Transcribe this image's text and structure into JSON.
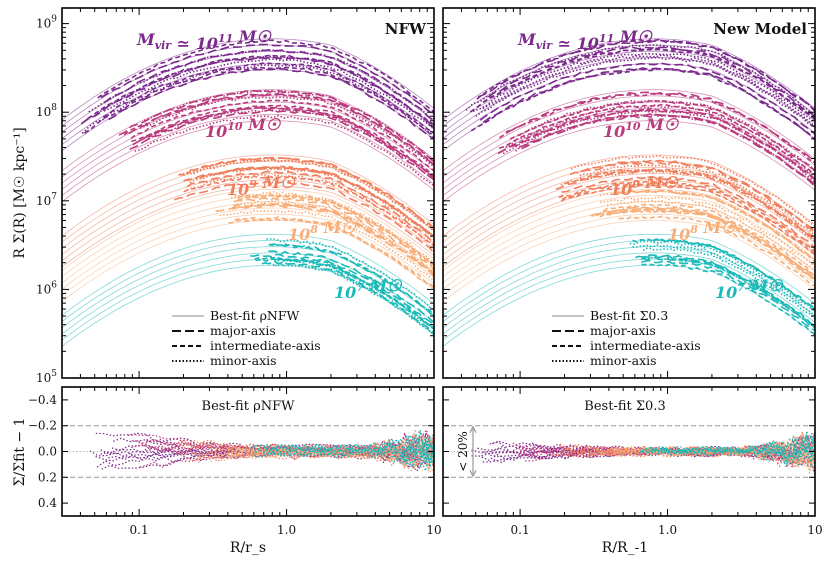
{
  "chart_data": {
    "type": "line",
    "colors": {
      "m11": "#7b2a8c",
      "m10": "#b93a7d",
      "m9": "#ef7f5d",
      "m8": "#f7ae78",
      "m7": "#1bbab8"
    },
    "panels": [
      {
        "title": "NFW",
        "xlabel": "R/r_s",
        "ylabel": "R Σ(R) [M☉ kpc⁻¹]",
        "xscale": "log",
        "yscale": "log",
        "xlim": [
          0.03,
          10
        ],
        "ylim": [
          100000,
          1500000000
        ],
        "xticks": [
          "0.1",
          "1.0",
          "10"
        ],
        "yticks": [
          "10^9",
          "10^8",
          "10^7",
          "10^6",
          "10^5"
        ],
        "legend": {
          "placement": "lower-center",
          "entries": [
            {
              "label": "Best-fit ρNFW",
              "style": "solid"
            },
            {
              "label": "major-axis",
              "style": "long-dash"
            },
            {
              "label": "intermediate-axis",
              "style": "dash"
            },
            {
              "label": "minor-axis",
              "style": "dot"
            }
          ]
        },
        "mass_labels": [
          {
            "key": "m11",
            "text": "M_vir ≃ 10^11 M☉"
          },
          {
            "key": "m10",
            "text": "10^10 M☉"
          },
          {
            "key": "m9",
            "text": "10^9 M☉"
          },
          {
            "key": "m8",
            "text": "10^8 M☉"
          },
          {
            "key": "m7",
            "text": "10^7 M☉"
          }
        ],
        "series": [
          {
            "key": "m11",
            "fit_peak": 450000000,
            "x_range": [
              0.04,
              10
            ]
          },
          {
            "key": "m10",
            "fit_peak": 120000000,
            "x_range": [
              0.07,
              10
            ]
          },
          {
            "key": "m9",
            "fit_peak": 22000000,
            "x_range": [
              0.17,
              10
            ]
          },
          {
            "key": "m8",
            "fit_peak": 9000000,
            "x_range": [
              0.3,
              10
            ]
          },
          {
            "key": "m7",
            "fit_peak": 2800000,
            "x_range": [
              0.55,
              10
            ]
          }
        ]
      },
      {
        "title": "New Model",
        "xlabel": "R/R_-1",
        "xscale": "log",
        "yscale": "log",
        "xlim": [
          0.03,
          10
        ],
        "ylim": [
          100000,
          1500000000
        ],
        "xticks": [
          "0.1",
          "1.0",
          "10"
        ],
        "legend": {
          "placement": "lower-center",
          "entries": [
            {
              "label": "Best-fit Σ0.3",
              "style": "solid"
            },
            {
              "label": "major-axis",
              "style": "long-dash"
            },
            {
              "label": "intermediate-axis",
              "style": "dash"
            },
            {
              "label": "minor-axis",
              "style": "dot"
            }
          ]
        },
        "mass_labels": [
          {
            "key": "m11",
            "text": "M_vir ≃ 10^11 M☉"
          },
          {
            "key": "m10",
            "text": "10^10 M☉"
          },
          {
            "key": "m9",
            "text": "10^9 M☉"
          },
          {
            "key": "m8",
            "text": "10^8 M☉"
          },
          {
            "key": "m7",
            "text": "10^7 M☉"
          }
        ],
        "series": [
          {
            "key": "m11",
            "fit_peak": 450000000,
            "x_range": [
              0.04,
              10
            ]
          },
          {
            "key": "m10",
            "fit_peak": 120000000,
            "x_range": [
              0.07,
              10
            ]
          },
          {
            "key": "m9",
            "fit_peak": 22000000,
            "x_range": [
              0.17,
              10
            ]
          },
          {
            "key": "m8",
            "fit_peak": 9000000,
            "x_range": [
              0.3,
              10
            ]
          },
          {
            "key": "m7",
            "fit_peak": 2800000,
            "x_range": [
              0.55,
              10
            ]
          }
        ]
      }
    ],
    "residual_panels": [
      {
        "annotation": "Best-fit ρNFW",
        "ylabel": "Σ/Σfit − 1",
        "ylim": [
          -0.5,
          0.5
        ],
        "yticks": [
          "0.4",
          "0.2",
          "0.0",
          "−0.2",
          "−0.4"
        ],
        "reference_lines": [
          0.2,
          0,
          -0.2
        ],
        "scatter_amplitude": 0.25
      },
      {
        "annotation": "Best-fit Σ0.3",
        "ylim": [
          -0.5,
          0.5
        ],
        "reference_lines": [
          0.2,
          0,
          -0.2
        ],
        "bracket_label": "< 20%",
        "scatter_amplitude": 0.12
      }
    ]
  }
}
